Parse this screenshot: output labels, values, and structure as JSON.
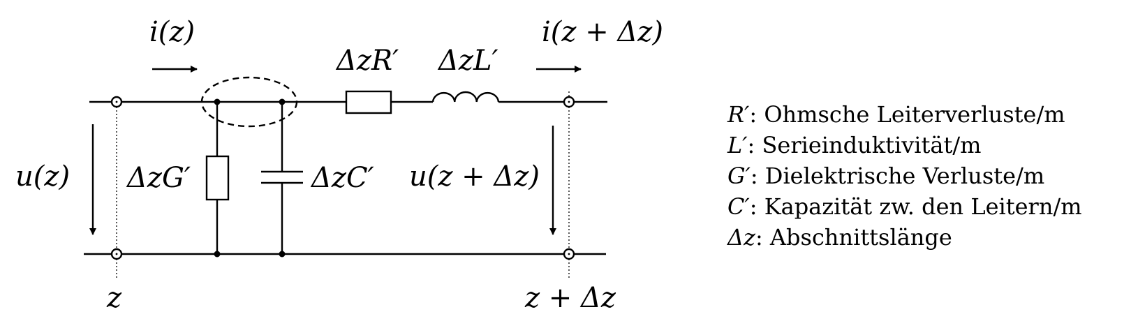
{
  "labels": {
    "i_in": "i(z)",
    "i_out": "i(z + Δz)",
    "u_in": "u(z)",
    "u_out": "u(z + Δz)",
    "res_series": "ΔzR′",
    "ind_series": "ΔzL′",
    "cond_shunt": "ΔzG′",
    "cap_shunt": "ΔzC′",
    "pos_left": "z",
    "pos_right": "z + Δz"
  },
  "legend": [
    {
      "sym": "R′",
      "text": ": Ohmsche Leiterverluste/m"
    },
    {
      "sym": "L′",
      "text": ": Serieinduktivität/m"
    },
    {
      "sym": "G′",
      "text": ": Dielektrische Verluste/m"
    },
    {
      "sym": "C′",
      "text": ": Kapazität zw. den Leitern/m"
    },
    {
      "sym": "Δz",
      "text": ": Abschnittslänge"
    }
  ]
}
